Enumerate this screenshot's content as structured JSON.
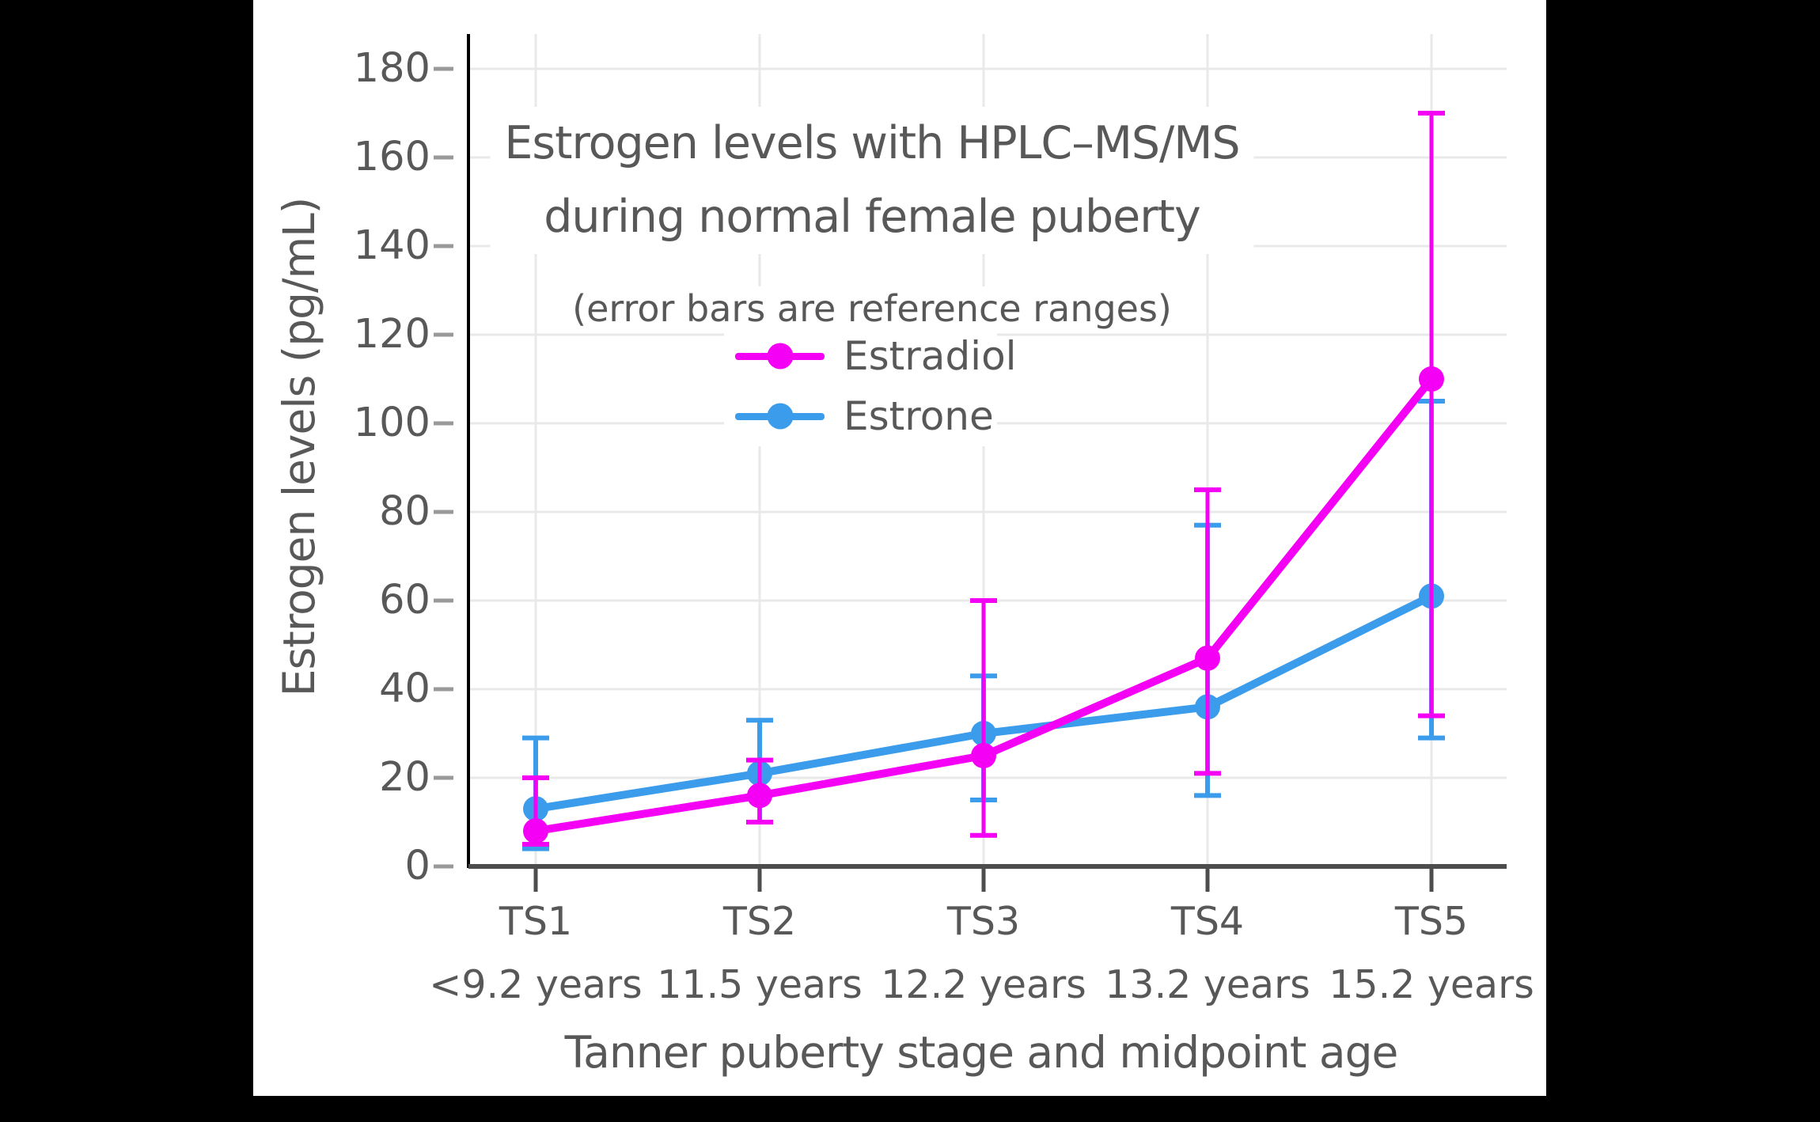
{
  "window": {
    "background": "#000000",
    "figure_background": "#FFFFFF"
  },
  "chart_data": {
    "type": "line",
    "title": "Estrogen levels with HPLC–MS/MS during normal female puberty",
    "title_lines": [
      "Estrogen levels with HPLC–MS/MS",
      "during normal female puberty"
    ],
    "subtitle": "(error bars are reference ranges)",
    "xlabel": "Tanner puberty stage and midpoint age",
    "ylabel": "Estrogen levels (pg/mL)",
    "categories": [
      "TS1",
      "TS2",
      "TS3",
      "TS4",
      "TS5"
    ],
    "category_sublabels": [
      "<9.2 years",
      "11.5 years",
      "12.2 years",
      "13.2 years",
      "15.2 years"
    ],
    "y_ticks": [
      0,
      20,
      40,
      60,
      80,
      100,
      120,
      140,
      160,
      180
    ],
    "ylim": [
      0,
      188
    ],
    "grid": true,
    "error_bars": "reference ranges",
    "legend": {
      "position": "inside-upper-center",
      "entries": [
        "Estradiol",
        "Estrone"
      ]
    },
    "series": [
      {
        "name": "Estradiol",
        "color": "#F400F4",
        "values": [
          8,
          16,
          25,
          47,
          110
        ],
        "err_low": [
          5,
          10,
          7,
          21,
          34
        ],
        "err_high": [
          20,
          24,
          60,
          85,
          170
        ]
      },
      {
        "name": "Estrone",
        "color": "#3B9CEC",
        "values": [
          13,
          21,
          30,
          36,
          61
        ],
        "err_low": [
          4,
          10,
          15,
          16,
          29
        ],
        "err_high": [
          29,
          33,
          43,
          77,
          105
        ]
      }
    ],
    "colors": {
      "grid": "#E9E9E9",
      "text": "#585858",
      "x_spine": "#4D4D4D",
      "y_spine": "#000000",
      "y_tick_mark": "#999999",
      "x_tick_mark": "#4D4D4D"
    }
  }
}
